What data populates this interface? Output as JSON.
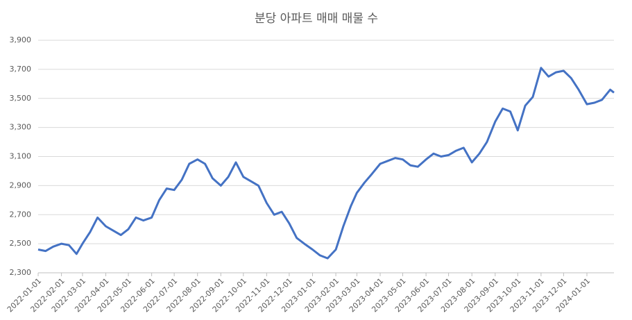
{
  "chart_data": {
    "type": "line",
    "title": "분당 아파트 매매 매물 수",
    "x": [
      "2022-01-01",
      "2022-01-11",
      "2022-01-21",
      "2022-02-01",
      "2022-02-11",
      "2022-02-21",
      "2022-03-01",
      "2022-03-11",
      "2022-03-21",
      "2022-04-01",
      "2022-04-11",
      "2022-04-21",
      "2022-05-01",
      "2022-05-11",
      "2022-05-21",
      "2022-06-01",
      "2022-06-11",
      "2022-06-21",
      "2022-07-01",
      "2022-07-11",
      "2022-07-21",
      "2022-08-01",
      "2022-08-11",
      "2022-08-21",
      "2022-09-01",
      "2022-09-11",
      "2022-09-21",
      "2022-10-01",
      "2022-10-11",
      "2022-10-21",
      "2022-11-01",
      "2022-11-11",
      "2022-11-21",
      "2022-12-01",
      "2022-12-11",
      "2022-12-21",
      "2023-01-01",
      "2023-01-11",
      "2023-01-21",
      "2023-02-01",
      "2023-02-11",
      "2023-02-21",
      "2023-03-01",
      "2023-03-11",
      "2023-03-21",
      "2023-04-01",
      "2023-04-11",
      "2023-04-21",
      "2023-05-01",
      "2023-05-11",
      "2023-05-21",
      "2023-06-01",
      "2023-06-11",
      "2023-06-21",
      "2023-07-01",
      "2023-07-11",
      "2023-07-21",
      "2023-08-01",
      "2023-08-11",
      "2023-08-21",
      "2023-09-01",
      "2023-09-11",
      "2023-09-21",
      "2023-10-01",
      "2023-10-11",
      "2023-10-21",
      "2023-11-01",
      "2023-11-11",
      "2023-11-21",
      "2023-12-01",
      "2023-12-11",
      "2023-12-21",
      "2024-01-01",
      "2024-01-11",
      "2024-01-21",
      "2024-02-01",
      "2024-02-06"
    ],
    "series": [
      {
        "name": "매물 수",
        "color": "#4472c4",
        "values": [
          2460,
          2450,
          2480,
          2500,
          2490,
          2430,
          2500,
          2580,
          2680,
          2620,
          2590,
          2560,
          2600,
          2680,
          2660,
          2680,
          2800,
          2880,
          2870,
          2940,
          3050,
          3080,
          3050,
          2950,
          2900,
          2960,
          3060,
          2960,
          2930,
          2900,
          2780,
          2700,
          2720,
          2640,
          2540,
          2500,
          2460,
          2420,
          2400,
          2460,
          2620,
          2760,
          2850,
          2920,
          2980,
          3050,
          3070,
          3090,
          3080,
          3040,
          3030,
          3080,
          3120,
          3100,
          3110,
          3140,
          3160,
          3060,
          3120,
          3200,
          3340,
          3430,
          3410,
          3280,
          3450,
          3510,
          3710,
          3650,
          3680,
          3690,
          3640,
          3560,
          3460,
          3470,
          3490,
          3560,
          3540
        ]
      }
    ],
    "xlim": [
      "2022-01-01",
      "2024-02-06"
    ],
    "xticks": [
      "2022-01-01",
      "2022-02-01",
      "2022-03-01",
      "2022-04-01",
      "2022-05-01",
      "2022-06-01",
      "2022-07-01",
      "2022-08-01",
      "2022-09-01",
      "2022-10-01",
      "2022-11-01",
      "2022-12-01",
      "2023-01-01",
      "2023-02-01",
      "2023-03-01",
      "2023-04-01",
      "2023-05-01",
      "2023-06-01",
      "2023-07-01",
      "2023-08-01",
      "2023-09-01",
      "2023-10-01",
      "2023-11-01",
      "2023-12-01",
      "2024-01-01"
    ],
    "ylim": [
      2300,
      3900
    ],
    "yticks": [
      {
        "value": 2300,
        "label": "2,300"
      },
      {
        "value": 2500,
        "label": "2,500"
      },
      {
        "value": 2700,
        "label": "2,700"
      },
      {
        "value": 2900,
        "label": "2,900"
      },
      {
        "value": 3100,
        "label": "3,100"
      },
      {
        "value": 3300,
        "label": "3,300"
      },
      {
        "value": 3500,
        "label": "3,500"
      },
      {
        "value": 3700,
        "label": "3,700"
      },
      {
        "value": 3900,
        "label": "3,900"
      }
    ],
    "grid": true
  }
}
